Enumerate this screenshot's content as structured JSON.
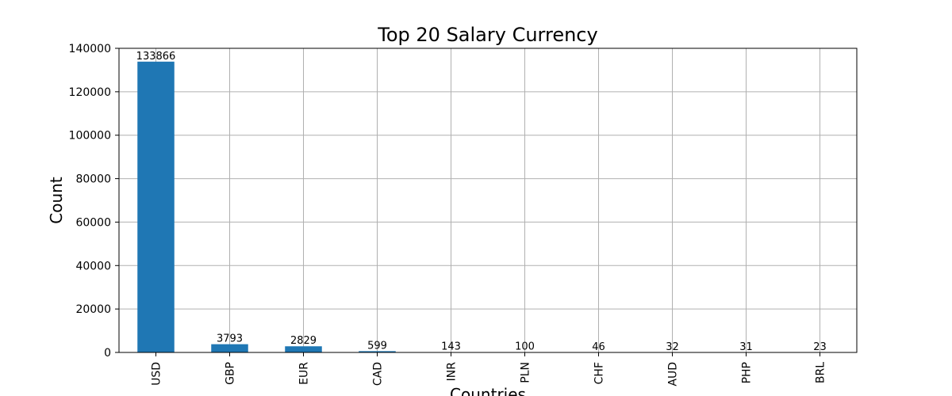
{
  "chart_data": {
    "type": "bar",
    "title": "Top 20 Salary Currency",
    "xlabel": "Countries",
    "ylabel": "Count",
    "categories": [
      "USD",
      "GBP",
      "EUR",
      "CAD",
      "INR",
      "PLN",
      "CHF",
      "AUD",
      "PHP",
      "BRL"
    ],
    "values": [
      133866,
      3793,
      2829,
      599,
      143,
      100,
      46,
      32,
      31,
      23
    ],
    "ylim": [
      0,
      140000
    ],
    "yticks": [
      0,
      20000,
      40000,
      60000,
      80000,
      100000,
      120000,
      140000
    ],
    "grid": true,
    "bar_color": "#1f77b4"
  }
}
